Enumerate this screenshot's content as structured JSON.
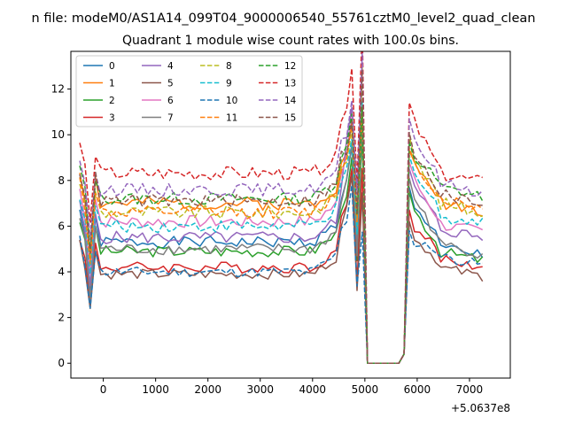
{
  "chart_data": {
    "type": "line",
    "suptitle": "n file: modeM0/AS1A14_099T04_9000006540_55761cztM0_level2_quad_clean",
    "title": "Quadrant 1 module wise count rates with 100.0s bins.",
    "xlabel": "",
    "ylabel": "",
    "x_offset_label": "+5.0637e8",
    "xlim": [
      -620,
      7780
    ],
    "ylim": [
      -0.65,
      13.65
    ],
    "xticks": [
      0,
      1000,
      2000,
      3000,
      4000,
      5000,
      6000,
      7000
    ],
    "xtick_labels": [
      "0",
      "1000",
      "2000",
      "3000",
      "4000",
      "5000",
      "6000",
      "7000"
    ],
    "yticks": [
      0,
      2,
      4,
      6,
      8,
      10,
      12
    ],
    "ytick_labels": [
      "0",
      "2",
      "4",
      "6",
      "8",
      "10",
      "12"
    ],
    "legend_position": "top-left",
    "legend_columns": 4,
    "grid": false,
    "x_start": -450,
    "x_step": 100,
    "gap": {
      "from": 5000,
      "to": 5700,
      "value": 0
    },
    "series": [
      {
        "name": "0",
        "color": "#1f77b4",
        "dashed": false,
        "baseline": 5.3,
        "spike": 9.5,
        "post": 7.2,
        "tail": 4.8,
        "noise": 0.25,
        "seed": 1
      },
      {
        "name": "1",
        "color": "#ff7f0e",
        "dashed": false,
        "baseline": 7.0,
        "spike": 10.5,
        "post": 8.8,
        "tail": 6.8,
        "noise": 0.3,
        "seed": 2
      },
      {
        "name": "2",
        "color": "#2ca02c",
        "dashed": false,
        "baseline": 4.9,
        "spike": 9.0,
        "post": 7.0,
        "tail": 4.6,
        "noise": 0.25,
        "seed": 3
      },
      {
        "name": "3",
        "color": "#d62728",
        "dashed": false,
        "baseline": 4.2,
        "spike": 8.5,
        "post": 6.2,
        "tail": 4.3,
        "noise": 0.25,
        "seed": 4
      },
      {
        "name": "4",
        "color": "#9467bd",
        "dashed": false,
        "baseline": 5.5,
        "spike": 11.2,
        "post": 8.0,
        "tail": 5.6,
        "noise": 0.28,
        "seed": 5
      },
      {
        "name": "5",
        "color": "#8c564b",
        "dashed": false,
        "baseline": 3.9,
        "spike": 8.2,
        "post": 5.7,
        "tail": 3.9,
        "noise": 0.22,
        "seed": 6
      },
      {
        "name": "6",
        "color": "#e377c2",
        "dashed": false,
        "baseline": 6.2,
        "spike": 10.8,
        "post": 8.3,
        "tail": 5.8,
        "noise": 0.28,
        "seed": 7
      },
      {
        "name": "7",
        "color": "#7f7f7f",
        "dashed": false,
        "baseline": 5.0,
        "spike": 9.6,
        "post": 7.6,
        "tail": 4.9,
        "noise": 0.25,
        "seed": 8
      },
      {
        "name": "8",
        "color": "#bcbd22",
        "dashed": true,
        "baseline": 6.6,
        "spike": 10.2,
        "post": 9.5,
        "tail": 6.7,
        "noise": 0.3,
        "seed": 9
      },
      {
        "name": "9",
        "color": "#17becf",
        "dashed": true,
        "baseline": 6.0,
        "spike": 9.8,
        "post": 8.6,
        "tail": 6.2,
        "noise": 0.28,
        "seed": 10
      },
      {
        "name": "10",
        "color": "#1f77b4",
        "dashed": true,
        "baseline": 4.0,
        "spike": 7.8,
        "post": 5.3,
        "tail": 4.4,
        "noise": 0.22,
        "seed": 11
      },
      {
        "name": "11",
        "color": "#ff7f0e",
        "dashed": true,
        "baseline": 6.6,
        "spike": 10.5,
        "post": 8.9,
        "tail": 6.9,
        "noise": 0.28,
        "seed": 12
      },
      {
        "name": "12",
        "color": "#2ca02c",
        "dashed": true,
        "baseline": 7.2,
        "spike": 10.9,
        "post": 9.2,
        "tail": 7.4,
        "noise": 0.28,
        "seed": 13
      },
      {
        "name": "13",
        "color": "#d62728",
        "dashed": true,
        "baseline": 8.3,
        "spike": 12.9,
        "post": 10.9,
        "tail": 8.0,
        "noise": 0.3,
        "seed": 14
      },
      {
        "name": "14",
        "color": "#9467bd",
        "dashed": true,
        "baseline": 7.6,
        "spike": 11.5,
        "post": 10.2,
        "tail": 7.6,
        "noise": 0.28,
        "seed": 15
      },
      {
        "name": "15",
        "color": "#8c564b",
        "dashed": true,
        "baseline": 7.1,
        "spike": 10.6,
        "post": 9.6,
        "tail": 7.1,
        "noise": 0.28,
        "seed": 16
      }
    ]
  }
}
